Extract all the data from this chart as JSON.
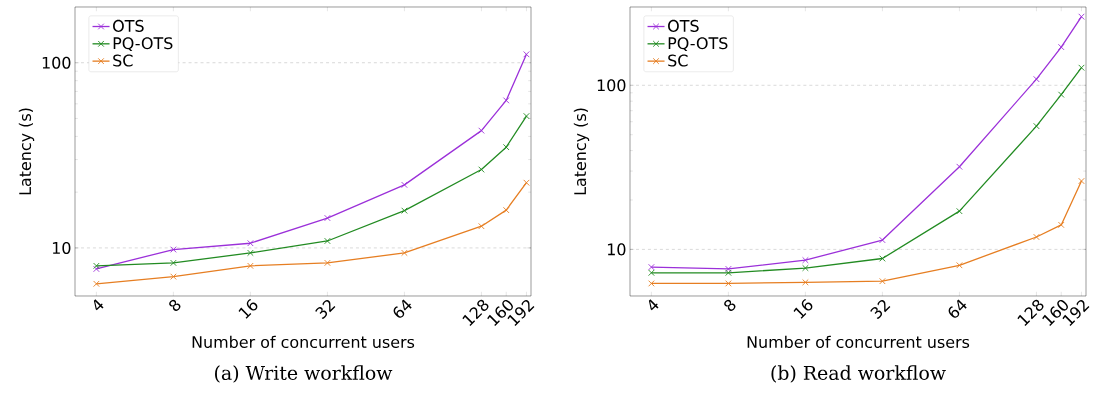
{
  "chart_data": [
    {
      "type": "line",
      "annotations": [
        "(a) Write workflow"
      ],
      "xlabel": "Number of concurrent users",
      "ylabel": "Latency (s)",
      "x": [
        4,
        8,
        16,
        32,
        64,
        128,
        160,
        192
      ],
      "series": [
        {
          "name": "OTS",
          "color": "#9b30d9",
          "values": [
            7.7,
            9.8,
            10.6,
            14.5,
            21.9,
            43,
            62.6,
            111
          ]
        },
        {
          "name": "PQ-OTS",
          "color": "#228b22",
          "values": [
            8.0,
            8.3,
            9.4,
            10.9,
            15.9,
            26.5,
            35.0,
            51.5
          ]
        },
        {
          "name": "SC",
          "color": "#e67e22",
          "values": [
            6.4,
            7.0,
            8.0,
            8.3,
            9.4,
            13.1,
            16.0,
            22.5
          ]
        }
      ],
      "xlim": [
        3.3,
        200
      ],
      "ylim": [
        5.5,
        200
      ],
      "xticks": [
        4,
        8,
        16,
        32,
        64,
        128,
        160,
        192
      ],
      "yticks": [
        10,
        100
      ],
      "log": "xy",
      "grid": "y",
      "legend": "top left",
      "marker": "cross",
      "line_style": "solid"
    },
    {
      "type": "line",
      "annotations": [
        "(b) Read workflow"
      ],
      "xlabel": "Number of concurrent users",
      "ylabel": "Latency (s)",
      "x": [
        4,
        8,
        16,
        32,
        64,
        128,
        160,
        192
      ],
      "series": [
        {
          "name": "OTS",
          "color": "#9b30d9",
          "values": [
            7.8,
            7.6,
            8.6,
            11.4,
            31.9,
            109,
            171,
            262
          ]
        },
        {
          "name": "PQ-OTS",
          "color": "#228b22",
          "values": [
            7.2,
            7.2,
            7.7,
            8.8,
            17.1,
            56.4,
            87.7,
            128
          ]
        },
        {
          "name": "SC",
          "color": "#e67e22",
          "values": [
            6.2,
            6.2,
            6.3,
            6.4,
            8.0,
            11.9,
            14.1,
            26.1
          ]
        }
      ],
      "xlim": [
        3.3,
        200
      ],
      "ylim": [
        5.2,
        300
      ],
      "xticks": [
        4,
        8,
        16,
        32,
        64,
        128,
        160,
        192
      ],
      "yticks": [
        10,
        100
      ],
      "log": "xy",
      "grid": "y",
      "legend": "top left",
      "marker": "cross",
      "line_style": "solid"
    }
  ]
}
